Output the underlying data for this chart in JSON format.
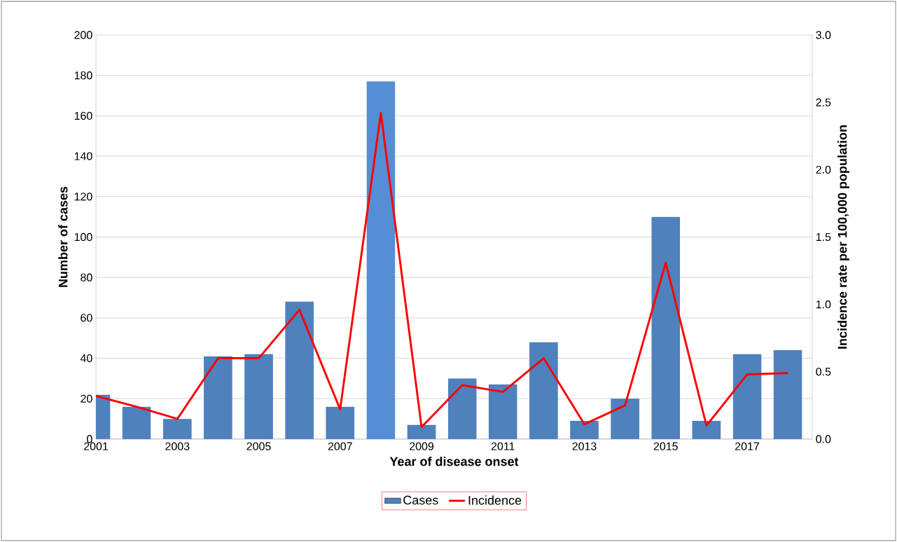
{
  "chart_data": {
    "type": "bar",
    "xlabel": "Year of disease onset",
    "ylabel": "Number of cases",
    "y2label": "Incidence rate per 100,000 population",
    "x": [
      2001,
      2002,
      2003,
      2004,
      2005,
      2006,
      2007,
      2008,
      2009,
      2010,
      2011,
      2012,
      2013,
      2014,
      2015,
      2016,
      2017,
      2018
    ],
    "series": [
      {
        "name": "Cases",
        "color": "#4f81bd",
        "colors": [
          "#4f81bd",
          "#4f81bd",
          "#4f81bd",
          "#4f81bd",
          "#4f81bd",
          "#4f81bd",
          "#4f81bd",
          "#558ed5",
          "#4f81bd",
          "#4f81bd",
          "#4f81bd",
          "#4f81bd",
          "#4f81bd",
          "#4f81bd",
          "#4f81bd",
          "#4f81bd",
          "#4f81bd",
          "#4f81bd"
        ],
        "values": [
          22,
          16,
          10,
          41,
          42,
          68,
          16,
          177,
          7,
          30,
          27,
          48,
          9,
          20,
          110,
          9,
          42,
          44
        ]
      },
      {
        "name": "Incidence",
        "type": "line",
        "axis": "y2",
        "color": "#ff0000",
        "values": [
          0.32,
          0.24,
          0.15,
          0.6,
          0.6,
          0.96,
          0.22,
          2.42,
          0.09,
          0.4,
          0.35,
          0.6,
          0.11,
          0.25,
          1.31,
          0.1,
          0.48,
          0.49
        ]
      }
    ],
    "xlim": [
      2001,
      2018.6
    ],
    "xticks": [
      2001,
      2003,
      2005,
      2007,
      2009,
      2011,
      2013,
      2015,
      2017
    ],
    "ylim": [
      0,
      200
    ],
    "yticks": [
      0,
      20,
      40,
      60,
      80,
      100,
      120,
      140,
      160,
      180,
      200
    ],
    "y2lim": [
      0,
      3
    ],
    "y2ticks": [
      {
        "value": 0,
        "label": "0.0"
      },
      {
        "value": 0.5,
        "label": "0.5"
      },
      {
        "value": 1,
        "label": "1.0"
      },
      {
        "value": 1.5,
        "label": "1.5"
      },
      {
        "value": 2,
        "label": "2.0"
      },
      {
        "value": 2.5,
        "label": "2.5"
      },
      {
        "value": 3,
        "label": "3.0"
      }
    ],
    "grid": "y",
    "legend": "bottom"
  }
}
